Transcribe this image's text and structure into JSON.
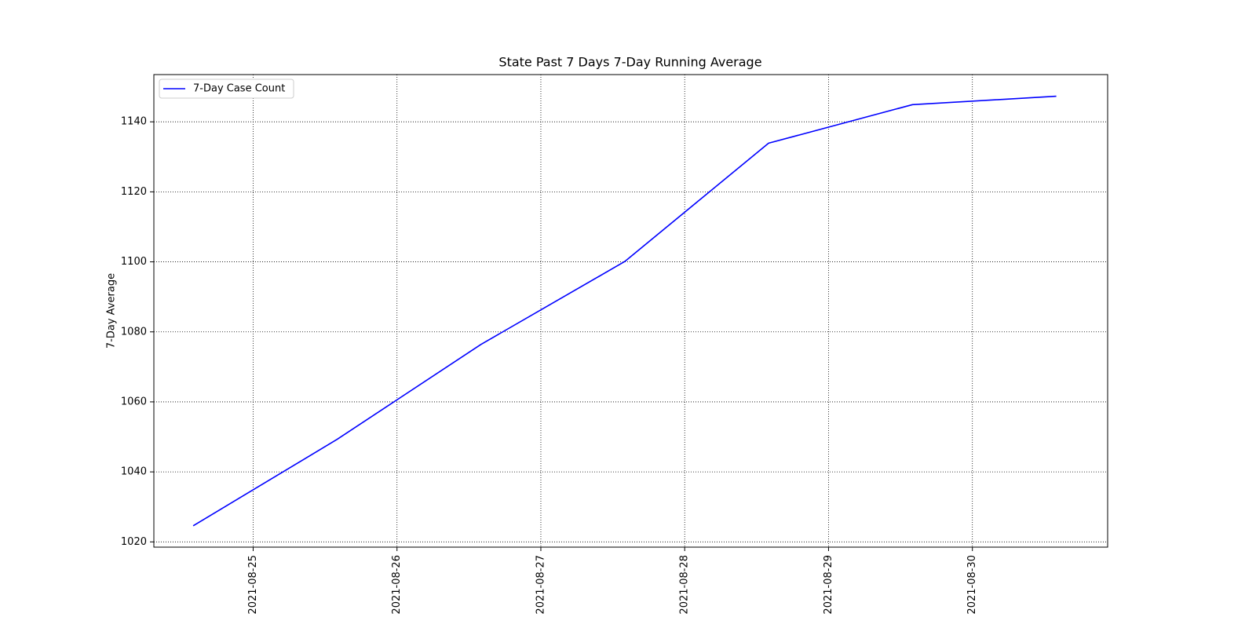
{
  "chart_data": {
    "type": "line",
    "title": "State Past 7 Days 7-Day Running Average",
    "xlabel": "",
    "ylabel": "7-Day Average",
    "x_scale": "date",
    "xlim": [
      "2021-08-24T07:26",
      "2021-08-30T22:34"
    ],
    "ylim": [
      1018.5,
      1153.5
    ],
    "x_ticks": [
      "2021-08-25",
      "2021-08-26",
      "2021-08-27",
      "2021-08-28",
      "2021-08-29",
      "2021-08-30"
    ],
    "y_ticks": [
      1020,
      1040,
      1060,
      1080,
      1100,
      1120,
      1140
    ],
    "grid": true,
    "grid_style": "dotted",
    "legend_position": "top-left",
    "series": [
      {
        "name": "7-Day Case Count",
        "color": "#0000ff",
        "x": [
          "2021-08-24T14:00",
          "2021-08-25T14:00",
          "2021-08-26T14:00",
          "2021-08-27T14:00",
          "2021-08-28T14:00",
          "2021-08-29T14:00",
          "2021-08-30T14:00"
        ],
        "y": [
          1024.6,
          1049.3,
          1076.4,
          1100.1,
          1133.9,
          1144.9,
          1147.3
        ]
      }
    ]
  }
}
